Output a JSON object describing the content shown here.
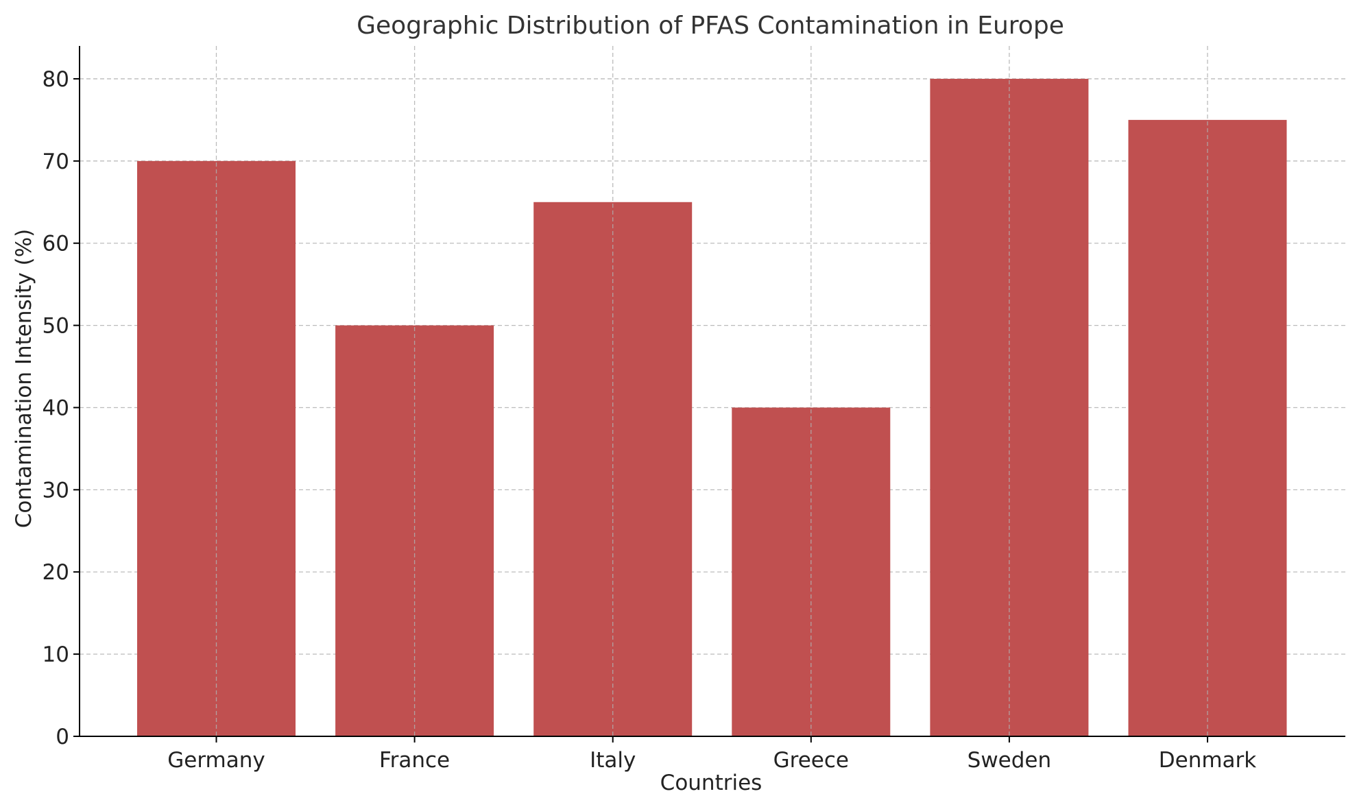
{
  "chart_data": {
    "type": "bar",
    "title": "Geographic Distribution of PFAS Contamination in Europe",
    "xlabel": "Countries",
    "ylabel": "Contamination Intensity (%)",
    "categories": [
      "Germany",
      "France",
      "Italy",
      "Greece",
      "Sweden",
      "Denmark"
    ],
    "values": [
      70,
      50,
      65,
      40,
      80,
      75
    ],
    "ylim": [
      0,
      84
    ],
    "yticks": [
      0,
      10,
      20,
      30,
      40,
      50,
      60,
      70,
      80
    ],
    "grid": true,
    "bar_color": "#c05050"
  }
}
